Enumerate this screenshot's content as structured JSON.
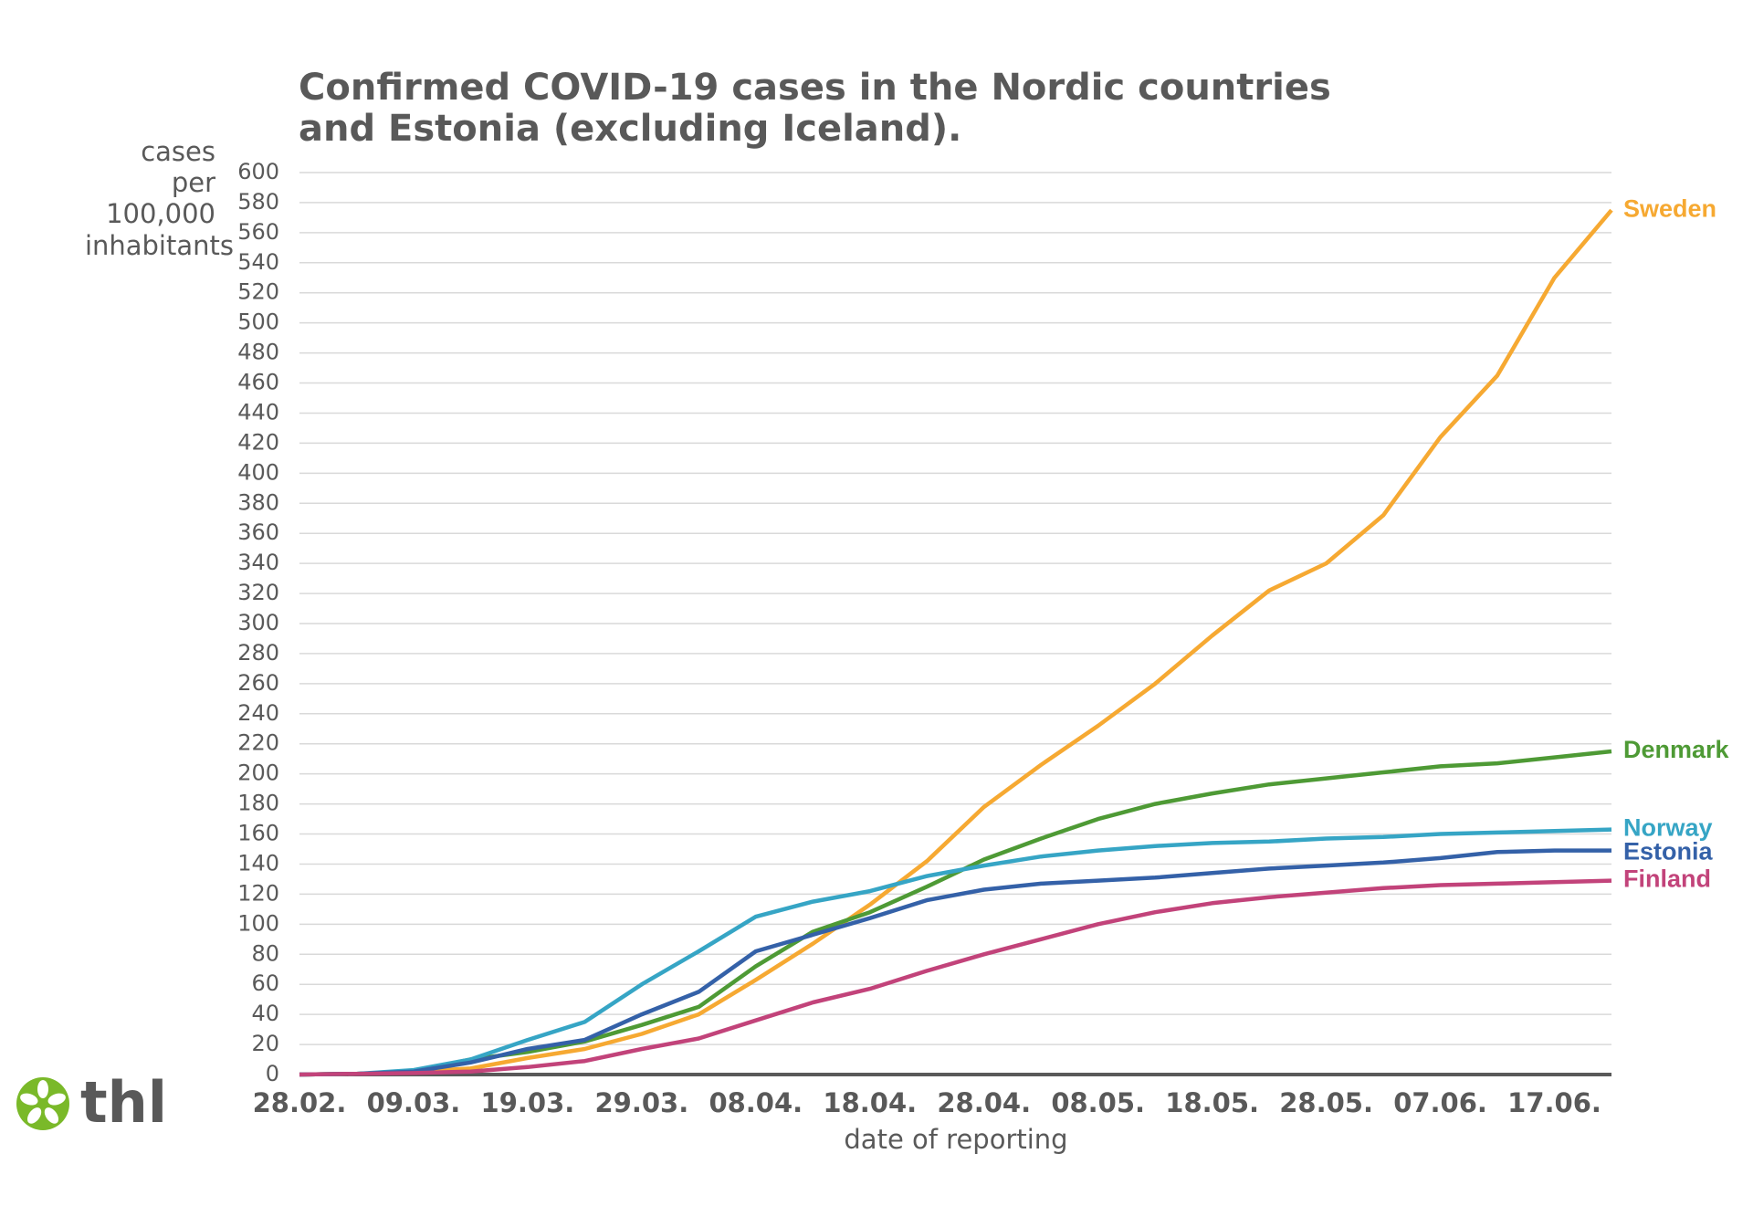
{
  "chart_data": {
    "type": "line",
    "title": [
      "Confirmed COVID-19 cases in the Nordic countries",
      "and Estonia (excluding Iceland)."
    ],
    "y_label": [
      "cases",
      "per",
      "100,000",
      "inhabitants"
    ],
    "x_label": "date of reporting",
    "logo_text": "thl",
    "categories": [
      "28.02.",
      null,
      "09.03.",
      null,
      "19.03.",
      null,
      "29.03.",
      null,
      "08.04.",
      null,
      "18.04.",
      null,
      "28.04.",
      null,
      "08.05.",
      null,
      "18.05.",
      null,
      "28.05.",
      null,
      "07.06.",
      null,
      "17.06.",
      null
    ],
    "ylim": [
      0,
      600
    ],
    "yticks": [
      0,
      20,
      40,
      60,
      80,
      100,
      120,
      140,
      160,
      180,
      200,
      220,
      240,
      260,
      280,
      300,
      320,
      340,
      360,
      380,
      400,
      420,
      440,
      460,
      480,
      500,
      520,
      540,
      560,
      580,
      600
    ],
    "grid": true,
    "series": [
      {
        "name": "Sweden",
        "color": "#f6a932",
        "values": [
          0,
          0.5,
          2,
          4,
          11,
          17,
          27,
          40,
          63,
          87,
          113,
          142,
          178,
          206,
          232,
          260,
          292,
          322,
          340,
          372,
          424,
          465,
          530,
          575
        ]
      },
      {
        "name": "Denmark",
        "color": "#4e9a35",
        "values": [
          0,
          0.5,
          2,
          10,
          15,
          22,
          33,
          45,
          72,
          95,
          108,
          125,
          143,
          157,
          170,
          180,
          187,
          193,
          197,
          201,
          205,
          207,
          211,
          215
        ]
      },
      {
        "name": "Norway",
        "color": "#36a5c5",
        "values": [
          0,
          0.5,
          3,
          10,
          23,
          35,
          60,
          82,
          105,
          115,
          122,
          132,
          139,
          145,
          149,
          152,
          154,
          155,
          157,
          158,
          160,
          161,
          162,
          163
        ]
      },
      {
        "name": "Estonia",
        "color": "#3461a8",
        "values": [
          0,
          0.5,
          2,
          8,
          17,
          23,
          40,
          55,
          82,
          93,
          104,
          116,
          123,
          127,
          129,
          131,
          134,
          137,
          139,
          141,
          144,
          148,
          149,
          149
        ]
      },
      {
        "name": "Finland",
        "color": "#c2437a",
        "values": [
          0,
          0.5,
          1,
          2,
          5,
          9,
          17,
          24,
          36,
          48,
          57,
          69,
          80,
          90,
          100,
          108,
          114,
          118,
          121,
          124,
          126,
          127,
          128,
          129
        ]
      }
    ]
  }
}
